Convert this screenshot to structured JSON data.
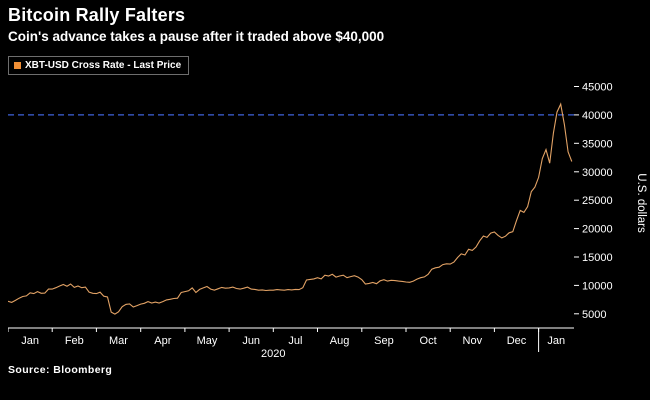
{
  "header": {
    "title": "Bitcoin Rally Falters",
    "subtitle": "Coin's advance takes a pause after it traded above $40,000"
  },
  "legend": {
    "label": "XBT-USD Cross Rate - Last Price",
    "swatch_color": "#ef8e35"
  },
  "footer": {
    "source": "Source: Bloomberg"
  },
  "chart_data": {
    "type": "line",
    "series_name": "XBT-USD Cross Rate - Last Price",
    "title": "Bitcoin Rally Falters",
    "subtitle": "Coin's advance takes a pause after it traded above $40,000",
    "ylabel": "U.S. dollars",
    "year_label": "2020",
    "line_color": "#e2a265",
    "background_color": "#000000",
    "axis_color": "#ffffff",
    "reference_line": {
      "value": 40000,
      "color": "#3f63db",
      "style": "dashed"
    },
    "ylim": [
      2500,
      46500
    ],
    "yticks": [
      5000,
      10000,
      15000,
      20000,
      25000,
      30000,
      35000,
      40000,
      45000
    ],
    "xlim": [
      0,
      12.8
    ],
    "month_labels": [
      "Jan",
      "Feb",
      "Mar",
      "Apr",
      "May",
      "Jun",
      "Jul",
      "Aug",
      "Sep",
      "Oct",
      "Nov",
      "Dec",
      "Jan"
    ],
    "year_boundary_month": 12,
    "points_per_month": 12,
    "values": [
      7200,
      7000,
      7350,
      7750,
      8050,
      8150,
      8700,
      8550,
      8900,
      8600,
      8650,
      9350,
      9350,
      9600,
      9900,
      10150,
      9850,
      10250,
      9650,
      9900,
      9600,
      9700,
      8800,
      8600,
      8550,
      8800,
      8100,
      7950,
      5300,
      4950,
      5350,
      6250,
      6650,
      6750,
      6200,
      6450,
      6700,
      6850,
      7150,
      6900,
      7050,
      6900,
      7150,
      7450,
      7550,
      7700,
      7750,
      8750,
      8900,
      9050,
      9550,
      8750,
      9300,
      9550,
      9800,
      9350,
      9150,
      9400,
      9650,
      9500,
      9550,
      9700,
      9450,
      9350,
      9500,
      9700,
      9350,
      9300,
      9150,
      9200,
      9100,
      9150,
      9150,
      9250,
      9200,
      9150,
      9250,
      9200,
      9300,
      9250,
      9600,
      10950,
      11050,
      11150,
      11350,
      11150,
      11800,
      11650,
      11950,
      11450,
      11650,
      11800,
      11350,
      11550,
      11700,
      11450,
      11000,
      10250,
      10350,
      10500,
      10300,
      10800,
      11000,
      10750,
      10900,
      10850,
      10750,
      10700,
      10600,
      10550,
      10750,
      11100,
      11350,
      11500,
      11950,
      12850,
      13100,
      13200,
      13650,
      13800,
      13750,
      14100,
      14900,
      15550,
      15350,
      16350,
      16150,
      16750,
      17850,
      18700,
      18450,
      19200,
      19400,
      18800,
      18350,
      18650,
      19250,
      19450,
      21400,
      23200,
      22850,
      23850,
      26500,
      27300,
      29000,
      32300,
      33900,
      31500,
      36800,
      40500,
      41900,
      38300,
      33500,
      31800
    ]
  }
}
